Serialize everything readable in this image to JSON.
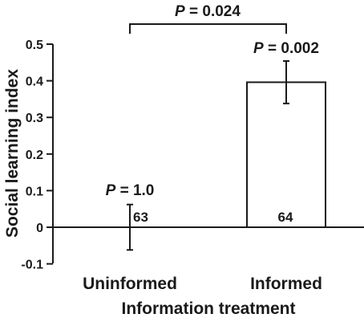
{
  "chart_data": {
    "type": "bar",
    "categories": [
      "Uninformed",
      "Informed"
    ],
    "values": [
      0.0,
      0.396
    ],
    "error": [
      0.062,
      0.058
    ],
    "n_labels": [
      "63",
      "64"
    ],
    "bar_annotations": [
      {
        "p": "P",
        "rest": " = 1.0"
      },
      {
        "p": "P",
        "rest": " = 0.002"
      }
    ],
    "bracket_annotation": {
      "p": "P",
      "rest": " = 0.024"
    },
    "xlabel": "Information treatment",
    "ylabel": "Social learning index",
    "ylim": [
      -0.1,
      0.5
    ],
    "yticks": [
      "-0.1",
      "0",
      "0.1",
      "0.2",
      "0.3",
      "0.4",
      "0.5"
    ],
    "ytick_values": [
      -0.1,
      0,
      0.1,
      0.2,
      0.3,
      0.4,
      0.5
    ],
    "grid": false,
    "legend": "none"
  }
}
